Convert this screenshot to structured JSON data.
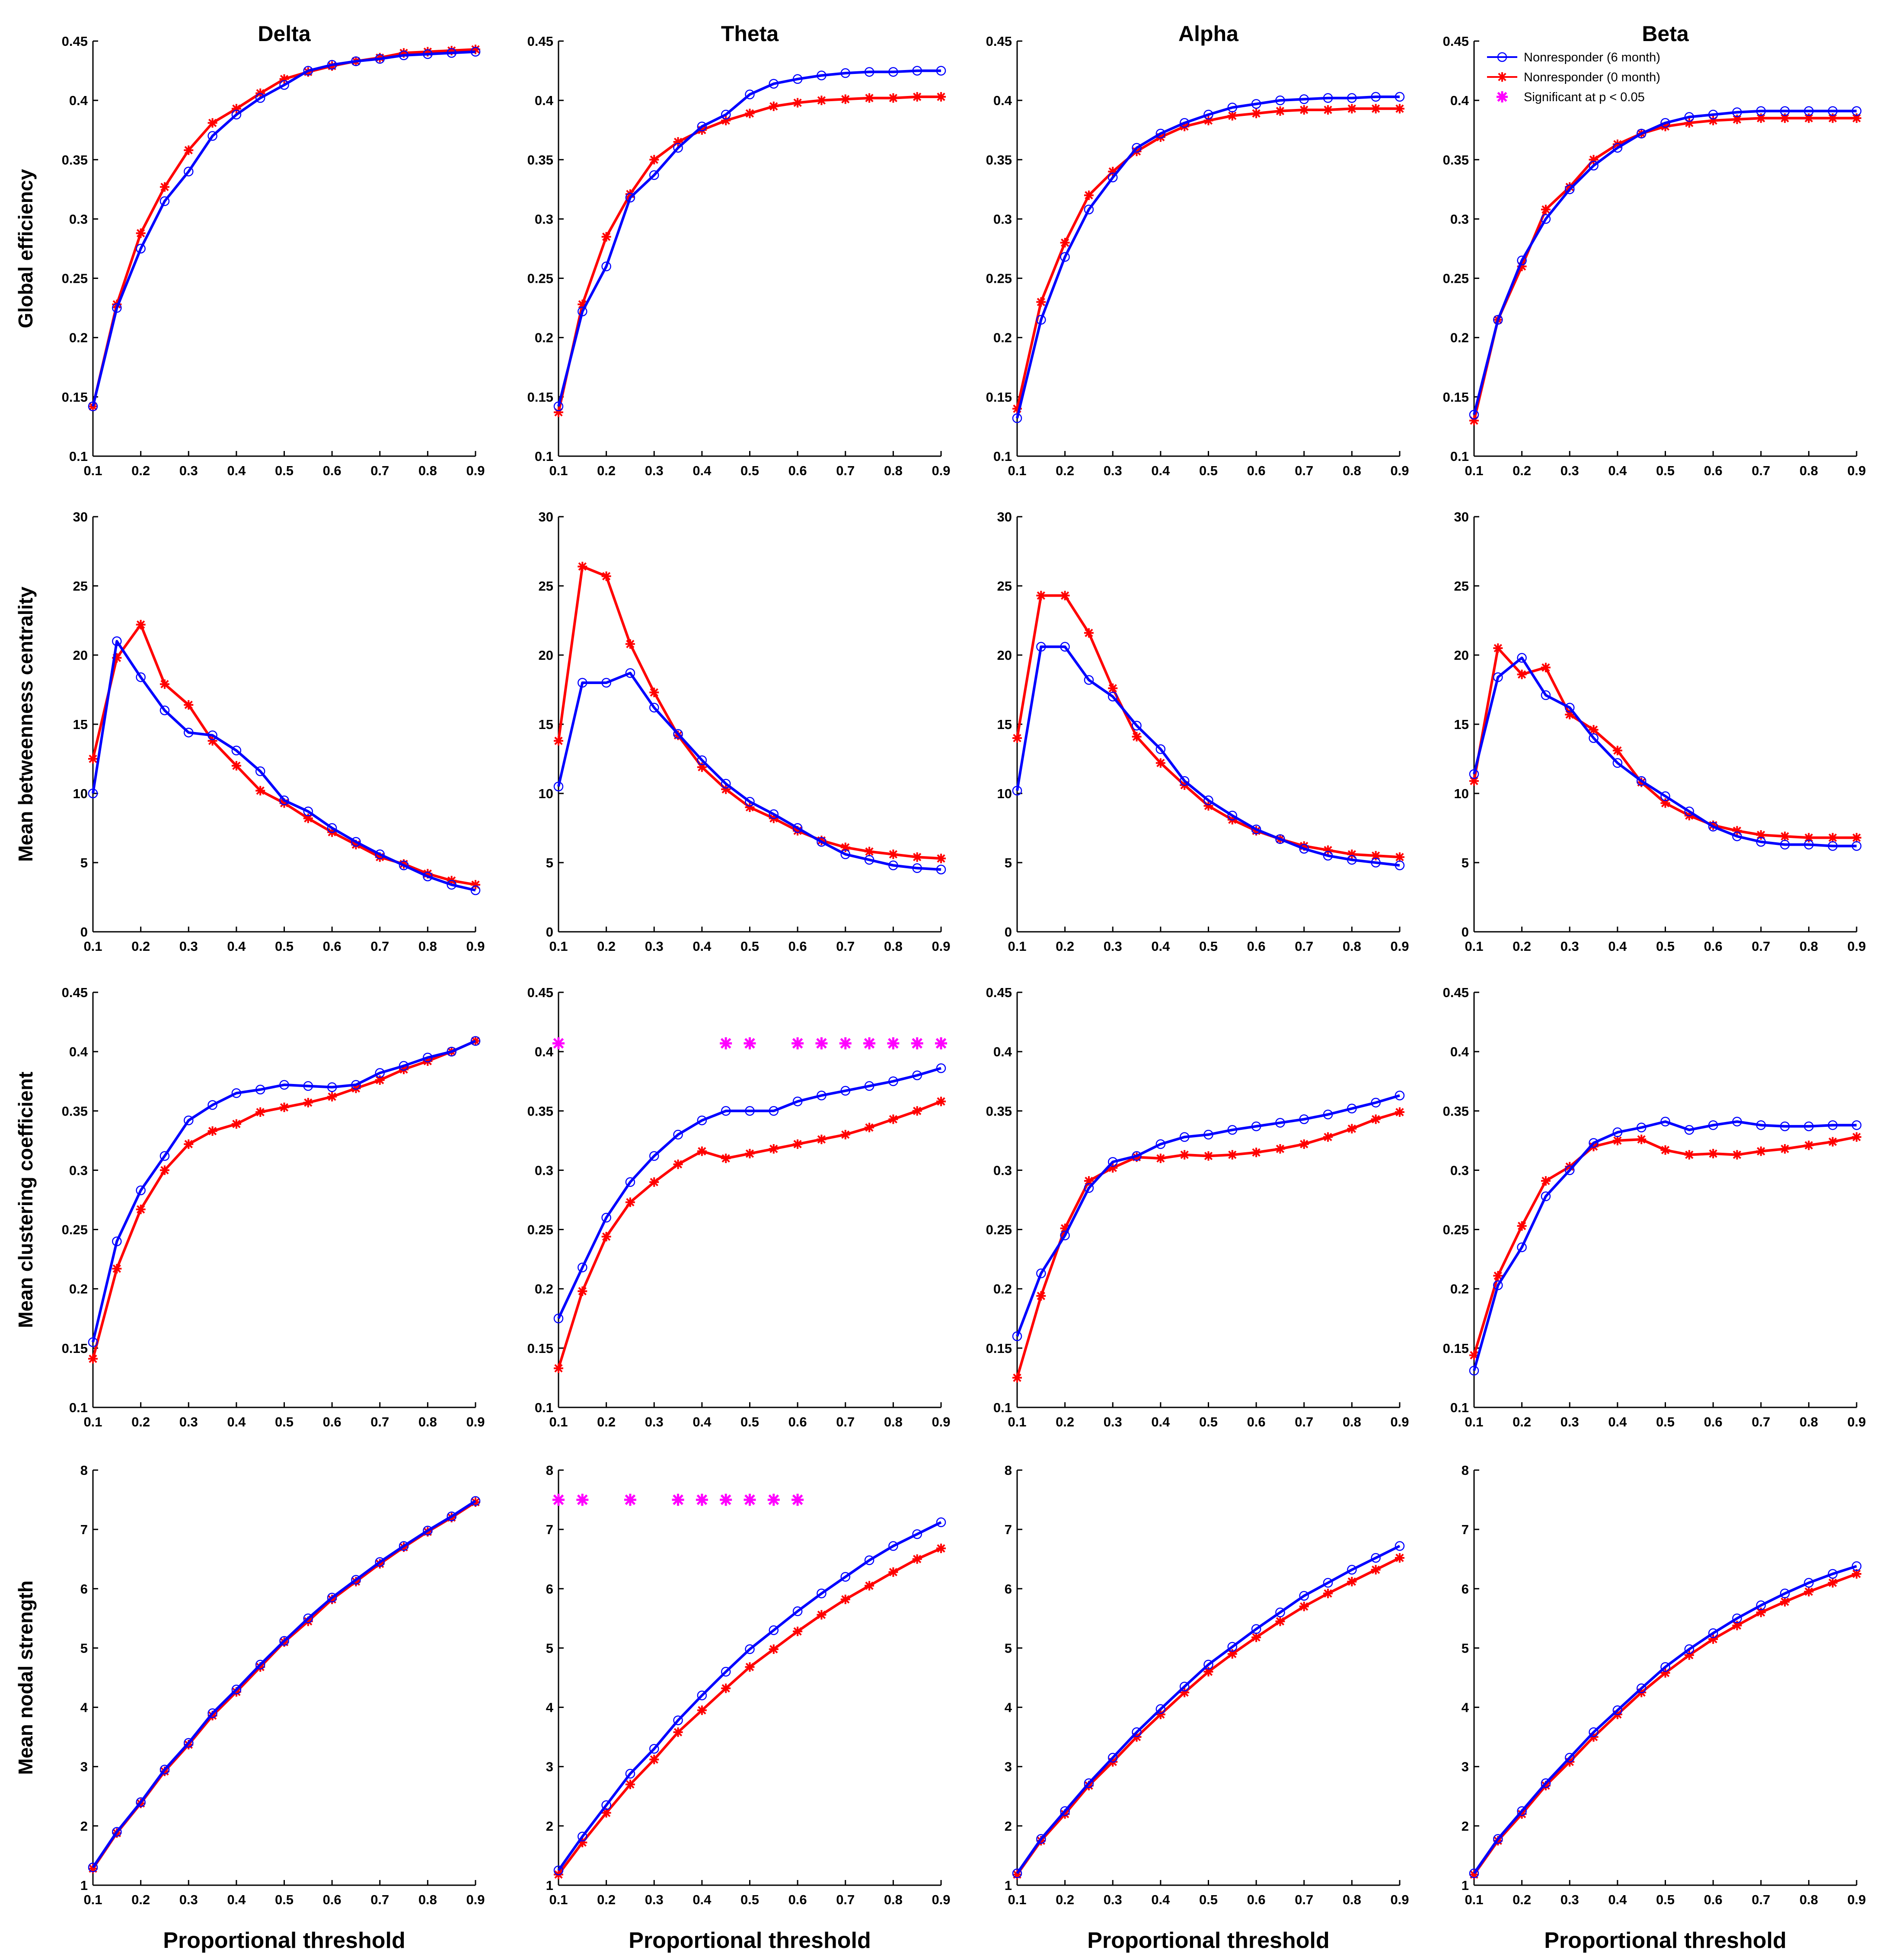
{
  "chart_data": {
    "type": "line",
    "column_titles": [
      "Delta",
      "Theta",
      "Alpha",
      "Beta"
    ],
    "row_ylabels": [
      "Global efficiency",
      "Mean betweenness centrality",
      "Mean clustering coefficient",
      "Mean nodal strength"
    ],
    "xlabel": "Proportional threshold",
    "x": [
      0.1,
      0.15,
      0.2,
      0.25,
      0.3,
      0.35,
      0.4,
      0.45,
      0.5,
      0.55,
      0.6,
      0.65,
      0.7,
      0.75,
      0.8,
      0.85,
      0.9
    ],
    "x_ticks": [
      "0.1",
      "0.2",
      "0.3",
      "0.4",
      "0.5",
      "0.6",
      "0.7",
      "0.8",
      "0.9"
    ],
    "legend": {
      "placement": "top-right of Beta / Global efficiency panel",
      "entries": [
        "Nonresponder (6 month)",
        "Nonresponder (0 month)",
        "Significant at p < 0.05"
      ]
    },
    "series_colors": {
      "nr6": "#0000ff",
      "nr0": "#ff0000",
      "sig": "#ff00ff"
    },
    "rows": [
      {
        "ylabel": "Global efficiency",
        "ylim": [
          0.1,
          0.45
        ],
        "y_ticks": [
          "0.1",
          "0.15",
          "0.2",
          "0.25",
          "0.3",
          "0.35",
          "0.4",
          "0.45"
        ],
        "panels": [
          {
            "band": "Delta",
            "nr6": [
              0.142,
              0.225,
              0.275,
              0.315,
              0.34,
              0.37,
              0.388,
              0.402,
              0.413,
              0.425,
              0.43,
              0.433,
              0.435,
              0.438,
              0.439,
              0.44,
              0.441
            ],
            "nr0": [
              0.142,
              0.228,
              0.288,
              0.327,
              0.358,
              0.381,
              0.393,
              0.406,
              0.418,
              0.424,
              0.429,
              0.433,
              0.436,
              0.44,
              0.441,
              0.442,
              0.443
            ],
            "sig": []
          },
          {
            "band": "Theta",
            "nr6": [
              0.142,
              0.222,
              0.26,
              0.318,
              0.337,
              0.36,
              0.378,
              0.388,
              0.405,
              0.414,
              0.418,
              0.421,
              0.423,
              0.424,
              0.424,
              0.425,
              0.425
            ],
            "nr0": [
              0.137,
              0.228,
              0.285,
              0.321,
              0.35,
              0.365,
              0.375,
              0.383,
              0.389,
              0.395,
              0.398,
              0.4,
              0.401,
              0.402,
              0.402,
              0.403,
              0.403
            ],
            "sig": []
          },
          {
            "band": "Alpha",
            "nr6": [
              0.132,
              0.215,
              0.268,
              0.308,
              0.335,
              0.36,
              0.372,
              0.381,
              0.388,
              0.394,
              0.397,
              0.4,
              0.401,
              0.402,
              0.402,
              0.403,
              0.403
            ],
            "nr0": [
              0.14,
              0.23,
              0.28,
              0.32,
              0.34,
              0.357,
              0.369,
              0.378,
              0.383,
              0.387,
              0.389,
              0.391,
              0.392,
              0.392,
              0.393,
              0.393,
              0.393
            ],
            "sig": []
          },
          {
            "band": "Beta",
            "nr6": [
              0.135,
              0.215,
              0.265,
              0.3,
              0.325,
              0.345,
              0.36,
              0.372,
              0.381,
              0.386,
              0.388,
              0.39,
              0.391,
              0.391,
              0.391,
              0.391,
              0.391
            ],
            "nr0": [
              0.13,
              0.215,
              0.26,
              0.308,
              0.327,
              0.35,
              0.363,
              0.372,
              0.378,
              0.381,
              0.383,
              0.384,
              0.385,
              0.385,
              0.385,
              0.385,
              0.385
            ],
            "sig": []
          }
        ]
      },
      {
        "ylabel": "Mean betweenness centrality",
        "ylim": [
          0,
          30
        ],
        "y_ticks": [
          "0",
          "5",
          "10",
          "15",
          "20",
          "25",
          "30"
        ],
        "panels": [
          {
            "band": "Delta",
            "nr6": [
              10.0,
              21.0,
              18.4,
              16.0,
              14.4,
              14.2,
              13.1,
              11.6,
              9.5,
              8.7,
              7.5,
              6.5,
              5.6,
              4.8,
              4.0,
              3.4,
              3.0
            ],
            "nr0": [
              12.5,
              19.8,
              22.2,
              17.9,
              16.4,
              13.8,
              12.0,
              10.2,
              9.3,
              8.2,
              7.2,
              6.3,
              5.4,
              4.9,
              4.2,
              3.7,
              3.4
            ],
            "sig": []
          },
          {
            "band": "Theta",
            "nr6": [
              10.5,
              18.0,
              18.0,
              18.7,
              16.2,
              14.3,
              12.4,
              10.7,
              9.4,
              8.5,
              7.5,
              6.5,
              5.6,
              5.2,
              4.8,
              4.6,
              4.5
            ],
            "nr0": [
              13.8,
              26.4,
              25.7,
              20.8,
              17.3,
              14.2,
              11.9,
              10.3,
              9.0,
              8.2,
              7.3,
              6.6,
              6.1,
              5.8,
              5.6,
              5.4,
              5.3
            ],
            "sig": []
          },
          {
            "band": "Alpha",
            "nr6": [
              10.2,
              20.6,
              20.6,
              18.2,
              17.0,
              14.9,
              13.2,
              10.9,
              9.5,
              8.4,
              7.4,
              6.7,
              6.0,
              5.5,
              5.2,
              5.0,
              4.8
            ],
            "nr0": [
              14.0,
              24.3,
              24.3,
              21.6,
              17.6,
              14.1,
              12.2,
              10.6,
              9.1,
              8.1,
              7.3,
              6.7,
              6.2,
              5.9,
              5.6,
              5.5,
              5.4
            ],
            "sig": []
          },
          {
            "band": "Beta",
            "nr6": [
              11.4,
              18.4,
              19.8,
              17.1,
              16.2,
              14.0,
              12.2,
              10.9,
              9.8,
              8.7,
              7.6,
              6.9,
              6.5,
              6.3,
              6.3,
              6.2,
              6.2
            ],
            "nr0": [
              10.9,
              20.5,
              18.6,
              19.1,
              15.7,
              14.6,
              13.1,
              10.8,
              9.3,
              8.4,
              7.7,
              7.3,
              7.0,
              6.9,
              6.8,
              6.8,
              6.8
            ],
            "sig": []
          }
        ]
      },
      {
        "ylabel": "Mean clustering coefficient",
        "ylim": [
          0.1,
          0.45
        ],
        "y_ticks": [
          "0.1",
          "0.15",
          "0.2",
          "0.25",
          "0.3",
          "0.35",
          "0.4",
          "0.45"
        ],
        "panels": [
          {
            "band": "Delta",
            "nr6": [
              0.155,
              0.24,
              0.283,
              0.312,
              0.342,
              0.355,
              0.365,
              0.368,
              0.372,
              0.371,
              0.37,
              0.372,
              0.382,
              0.388,
              0.395,
              0.4,
              0.409
            ],
            "nr0": [
              0.141,
              0.217,
              0.267,
              0.3,
              0.322,
              0.333,
              0.339,
              0.349,
              0.353,
              0.357,
              0.362,
              0.369,
              0.376,
              0.385,
              0.392,
              0.4,
              0.409
            ],
            "sig": []
          },
          {
            "band": "Theta",
            "nr6": [
              0.175,
              0.218,
              0.26,
              0.29,
              0.312,
              0.33,
              0.342,
              0.35,
              0.35,
              0.35,
              0.358,
              0.363,
              0.367,
              0.371,
              0.375,
              0.38,
              0.386
            ],
            "nr0": [
              0.133,
              0.198,
              0.244,
              0.273,
              0.29,
              0.305,
              0.316,
              0.31,
              0.314,
              0.318,
              0.322,
              0.326,
              0.33,
              0.336,
              0.343,
              0.35,
              0.358
            ],
            "sig": [
              0.1,
              0.45,
              0.5,
              0.6,
              0.65,
              0.7,
              0.75,
              0.8,
              0.85,
              0.9
            ],
            "sig_y": 0.407
          },
          {
            "band": "Alpha",
            "nr6": [
              0.16,
              0.213,
              0.245,
              0.285,
              0.307,
              0.312,
              0.322,
              0.328,
              0.33,
              0.334,
              0.337,
              0.34,
              0.343,
              0.347,
              0.352,
              0.357,
              0.363
            ],
            "nr0": [
              0.125,
              0.194,
              0.251,
              0.291,
              0.302,
              0.311,
              0.31,
              0.313,
              0.312,
              0.313,
              0.315,
              0.318,
              0.322,
              0.328,
              0.335,
              0.343,
              0.349
            ],
            "sig": []
          },
          {
            "band": "Beta",
            "nr6": [
              0.131,
              0.203,
              0.235,
              0.278,
              0.3,
              0.323,
              0.332,
              0.336,
              0.341,
              0.334,
              0.338,
              0.341,
              0.338,
              0.337,
              0.337,
              0.338,
              0.338
            ],
            "nr0": [
              0.144,
              0.211,
              0.253,
              0.291,
              0.303,
              0.32,
              0.325,
              0.326,
              0.317,
              0.313,
              0.314,
              0.313,
              0.316,
              0.318,
              0.321,
              0.324,
              0.328
            ],
            "sig": []
          }
        ]
      },
      {
        "ylabel": "Mean nodal strength",
        "ylim": [
          1,
          8
        ],
        "y_ticks": [
          "1",
          "2",
          "3",
          "4",
          "5",
          "6",
          "7",
          "8"
        ],
        "panels": [
          {
            "band": "Delta",
            "nr6": [
              1.3,
              1.9,
              2.4,
              2.95,
              3.4,
              3.9,
              4.3,
              4.72,
              5.12,
              5.5,
              5.85,
              6.15,
              6.45,
              6.72,
              6.98,
              7.22,
              7.48
            ],
            "nr0": [
              1.28,
              1.88,
              2.38,
              2.92,
              3.37,
              3.86,
              4.26,
              4.68,
              5.1,
              5.45,
              5.82,
              6.12,
              6.42,
              6.7,
              6.96,
              7.2,
              7.46
            ],
            "sig": []
          },
          {
            "band": "Theta",
            "nr6": [
              1.25,
              1.82,
              2.35,
              2.88,
              3.3,
              3.78,
              4.2,
              4.6,
              4.98,
              5.3,
              5.62,
              5.92,
              6.2,
              6.48,
              6.72,
              6.92,
              7.12
            ],
            "nr0": [
              1.18,
              1.72,
              2.22,
              2.7,
              3.12,
              3.58,
              3.95,
              4.32,
              4.68,
              4.98,
              5.28,
              5.56,
              5.82,
              6.05,
              6.28,
              6.5,
              6.68
            ],
            "sig": [
              0.1,
              0.15,
              0.25,
              0.35,
              0.4,
              0.45,
              0.5,
              0.55,
              0.6
            ],
            "sig_y": 7.5
          },
          {
            "band": "Alpha",
            "nr6": [
              1.2,
              1.78,
              2.25,
              2.72,
              3.15,
              3.58,
              3.97,
              4.35,
              4.72,
              5.02,
              5.32,
              5.6,
              5.88,
              6.1,
              6.32,
              6.52,
              6.72
            ],
            "nr0": [
              1.18,
              1.75,
              2.2,
              2.68,
              3.08,
              3.5,
              3.88,
              4.25,
              4.6,
              4.9,
              5.18,
              5.45,
              5.7,
              5.92,
              6.12,
              6.32,
              6.52
            ],
            "sig": []
          },
          {
            "band": "Beta",
            "nr6": [
              1.2,
              1.78,
              2.25,
              2.72,
              3.15,
              3.58,
              3.95,
              4.32,
              4.68,
              4.98,
              5.25,
              5.5,
              5.72,
              5.92,
              6.1,
              6.25,
              6.38
            ],
            "nr0": [
              1.18,
              1.75,
              2.2,
              2.68,
              3.08,
              3.5,
              3.88,
              4.25,
              4.58,
              4.88,
              5.15,
              5.38,
              5.6,
              5.78,
              5.95,
              6.1,
              6.25
            ],
            "sig": []
          }
        ]
      }
    ]
  }
}
